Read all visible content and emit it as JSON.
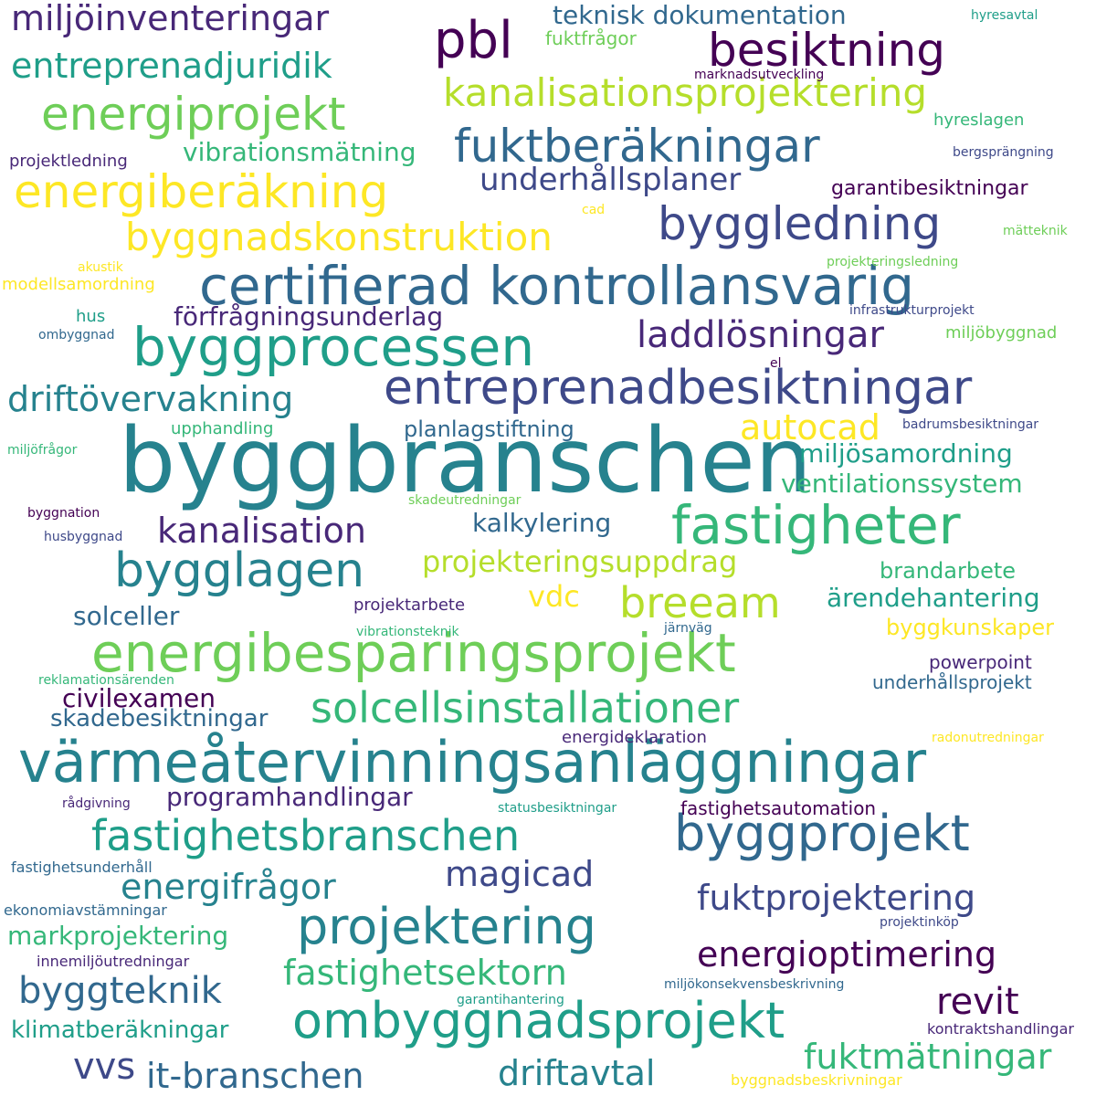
{
  "palette": {
    "c0": "#fde725",
    "c1": "#b5de2b",
    "c2": "#6ece58",
    "c3": "#35b779",
    "c4": "#1f9e89",
    "c5": "#26828e",
    "c6": "#31688e",
    "c7": "#3e4989",
    "c8": "#482878",
    "c9": "#440154"
  },
  "words": [
    {
      "text": "byggbranschen",
      "color": "c5"
    },
    {
      "text": "värmeåtervinningsanläggningar",
      "color": "c5"
    },
    {
      "text": "energibesparingsprojekt",
      "color": "c2"
    },
    {
      "text": "certifierad kontrollansvarig",
      "color": "c6"
    },
    {
      "text": "byggprocessen",
      "color": "c4"
    },
    {
      "text": "entreprenadbesiktningar",
      "color": "c7"
    },
    {
      "text": "fastigheter",
      "color": "c3"
    },
    {
      "text": "byggprojekt",
      "color": "c6"
    },
    {
      "text": "ombyggnadsprojekt",
      "color": "c4"
    },
    {
      "text": "projektering",
      "color": "c5"
    },
    {
      "text": "bygglagen",
      "color": "c5"
    },
    {
      "text": "solcellsinstallationer",
      "color": "c3"
    },
    {
      "text": "fastighetsbranschen",
      "color": "c4"
    },
    {
      "text": "energiberäkning",
      "color": "c0"
    },
    {
      "text": "fuktberäkningar",
      "color": "c6"
    },
    {
      "text": "energiprojekt",
      "color": "c2"
    },
    {
      "text": "byggledning",
      "color": "c7"
    },
    {
      "text": "byggnadskonstruktion",
      "color": "c0"
    },
    {
      "text": "kanalisationsprojektering",
      "color": "c1"
    },
    {
      "text": "pbl",
      "color": "c9"
    },
    {
      "text": "besiktning",
      "color": "c9"
    },
    {
      "text": "breeam",
      "color": "c1"
    },
    {
      "text": "miljöinventeringar",
      "color": "c8"
    },
    {
      "text": "entreprenadjuridik",
      "color": "c4"
    },
    {
      "text": "laddlösningar",
      "color": "c8"
    },
    {
      "text": "driftövervakning",
      "color": "c5"
    },
    {
      "text": "kanalisation",
      "color": "c8"
    },
    {
      "text": "underhållsplaner",
      "color": "c7"
    },
    {
      "text": "fuktprojektering",
      "color": "c7"
    },
    {
      "text": "energioptimering",
      "color": "c9"
    },
    {
      "text": "fastighetsektorn",
      "color": "c3"
    },
    {
      "text": "it-branschen",
      "color": "c6"
    },
    {
      "text": "driftavtal",
      "color": "c5"
    },
    {
      "text": "byggteknik",
      "color": "c6"
    },
    {
      "text": "energifrågor",
      "color": "c5"
    },
    {
      "text": "magicad",
      "color": "c7"
    },
    {
      "text": "revit",
      "color": "c9"
    },
    {
      "text": "vvs",
      "color": "c7"
    },
    {
      "text": "autocad",
      "color": "c0"
    },
    {
      "text": "fuktmätningar",
      "color": "c3"
    },
    {
      "text": "projekteringsuppdrag",
      "color": "c1"
    },
    {
      "text": "programhandlingar",
      "color": "c8"
    },
    {
      "text": "miljösamordning",
      "color": "c4"
    },
    {
      "text": "ventilationssystem",
      "color": "c3"
    },
    {
      "text": "vibrationsmätning",
      "color": "c3"
    },
    {
      "text": "förfrågningsunderlag",
      "color": "c8"
    },
    {
      "text": "teknisk dokumentation",
      "color": "c6"
    },
    {
      "text": "kalkylering",
      "color": "c6"
    },
    {
      "text": "planlagstiftning",
      "color": "c6"
    },
    {
      "text": "civilexamen",
      "color": "c9"
    },
    {
      "text": "skadebesiktningar",
      "color": "c6"
    },
    {
      "text": "markprojektering",
      "color": "c3"
    },
    {
      "text": "klimatberäkningar",
      "color": "c4"
    },
    {
      "text": "solceller",
      "color": "c6"
    },
    {
      "text": "ärendehantering",
      "color": "c4"
    },
    {
      "text": "vdc",
      "color": "c0"
    },
    {
      "text": "brandarbete",
      "color": "c3"
    },
    {
      "text": "byggkunskaper",
      "color": "c0"
    },
    {
      "text": "garantibesiktningar",
      "color": "c9"
    },
    {
      "text": "fuktfrågor",
      "color": "c2"
    },
    {
      "text": "underhållsprojekt",
      "color": "c6"
    },
    {
      "text": "powerpoint",
      "color": "c8"
    },
    {
      "text": "fastighetsautomation",
      "color": "c9"
    },
    {
      "text": "energideklaration",
      "color": "c8"
    },
    {
      "text": "projektarbete",
      "color": "c8"
    },
    {
      "text": "modellsamordning",
      "color": "c0"
    },
    {
      "text": "hyreslagen",
      "color": "c3"
    },
    {
      "text": "miljöbyggnad",
      "color": "c2"
    },
    {
      "text": "upphandling",
      "color": "c3"
    },
    {
      "text": "hus",
      "color": "c4"
    },
    {
      "text": "projektledning",
      "color": "c8"
    },
    {
      "text": "innemiljöutredningar",
      "color": "c8"
    },
    {
      "text": "fastighetsunderhåll",
      "color": "c6"
    },
    {
      "text": "ekonomiavstämningar",
      "color": "c6"
    },
    {
      "text": "kontraktshandlingar",
      "color": "c8"
    },
    {
      "text": "byggnadsbeskrivningar",
      "color": "c0"
    },
    {
      "text": "miljökonsekvensbeskrivning",
      "color": "c6"
    },
    {
      "text": "statusbesiktningar",
      "color": "c4"
    },
    {
      "text": "rådgivning",
      "color": "c8"
    },
    {
      "text": "badrumsbesiktningar",
      "color": "c7"
    },
    {
      "text": "bergsprängning",
      "color": "c7"
    },
    {
      "text": "hyresavtal",
      "color": "c4"
    },
    {
      "text": "marknadsutveckling",
      "color": "c9"
    },
    {
      "text": "mätteknik",
      "color": "c2"
    },
    {
      "text": "cad",
      "color": "c0"
    },
    {
      "text": "akustik",
      "color": "c0"
    },
    {
      "text": "projekteringsledning",
      "color": "c2"
    },
    {
      "text": "infrastrukturprojekt",
      "color": "c7"
    },
    {
      "text": "ombyggnad",
      "color": "c6"
    },
    {
      "text": "el",
      "color": "c9"
    },
    {
      "text": "miljöfrågor",
      "color": "c3"
    },
    {
      "text": "byggnation",
      "color": "c9"
    },
    {
      "text": "husbyggnad",
      "color": "c7"
    },
    {
      "text": "skadeutredningar",
      "color": "c2"
    },
    {
      "text": "vibrationsteknik",
      "color": "c3"
    },
    {
      "text": "järnväg",
      "color": "c6"
    },
    {
      "text": "reklamationsärenden",
      "color": "c3"
    },
    {
      "text": "radonutredningar",
      "color": "c0"
    },
    {
      "text": "garantihantering",
      "color": "c4"
    },
    {
      "text": "projektinköp",
      "color": "c7"
    }
  ]
}
